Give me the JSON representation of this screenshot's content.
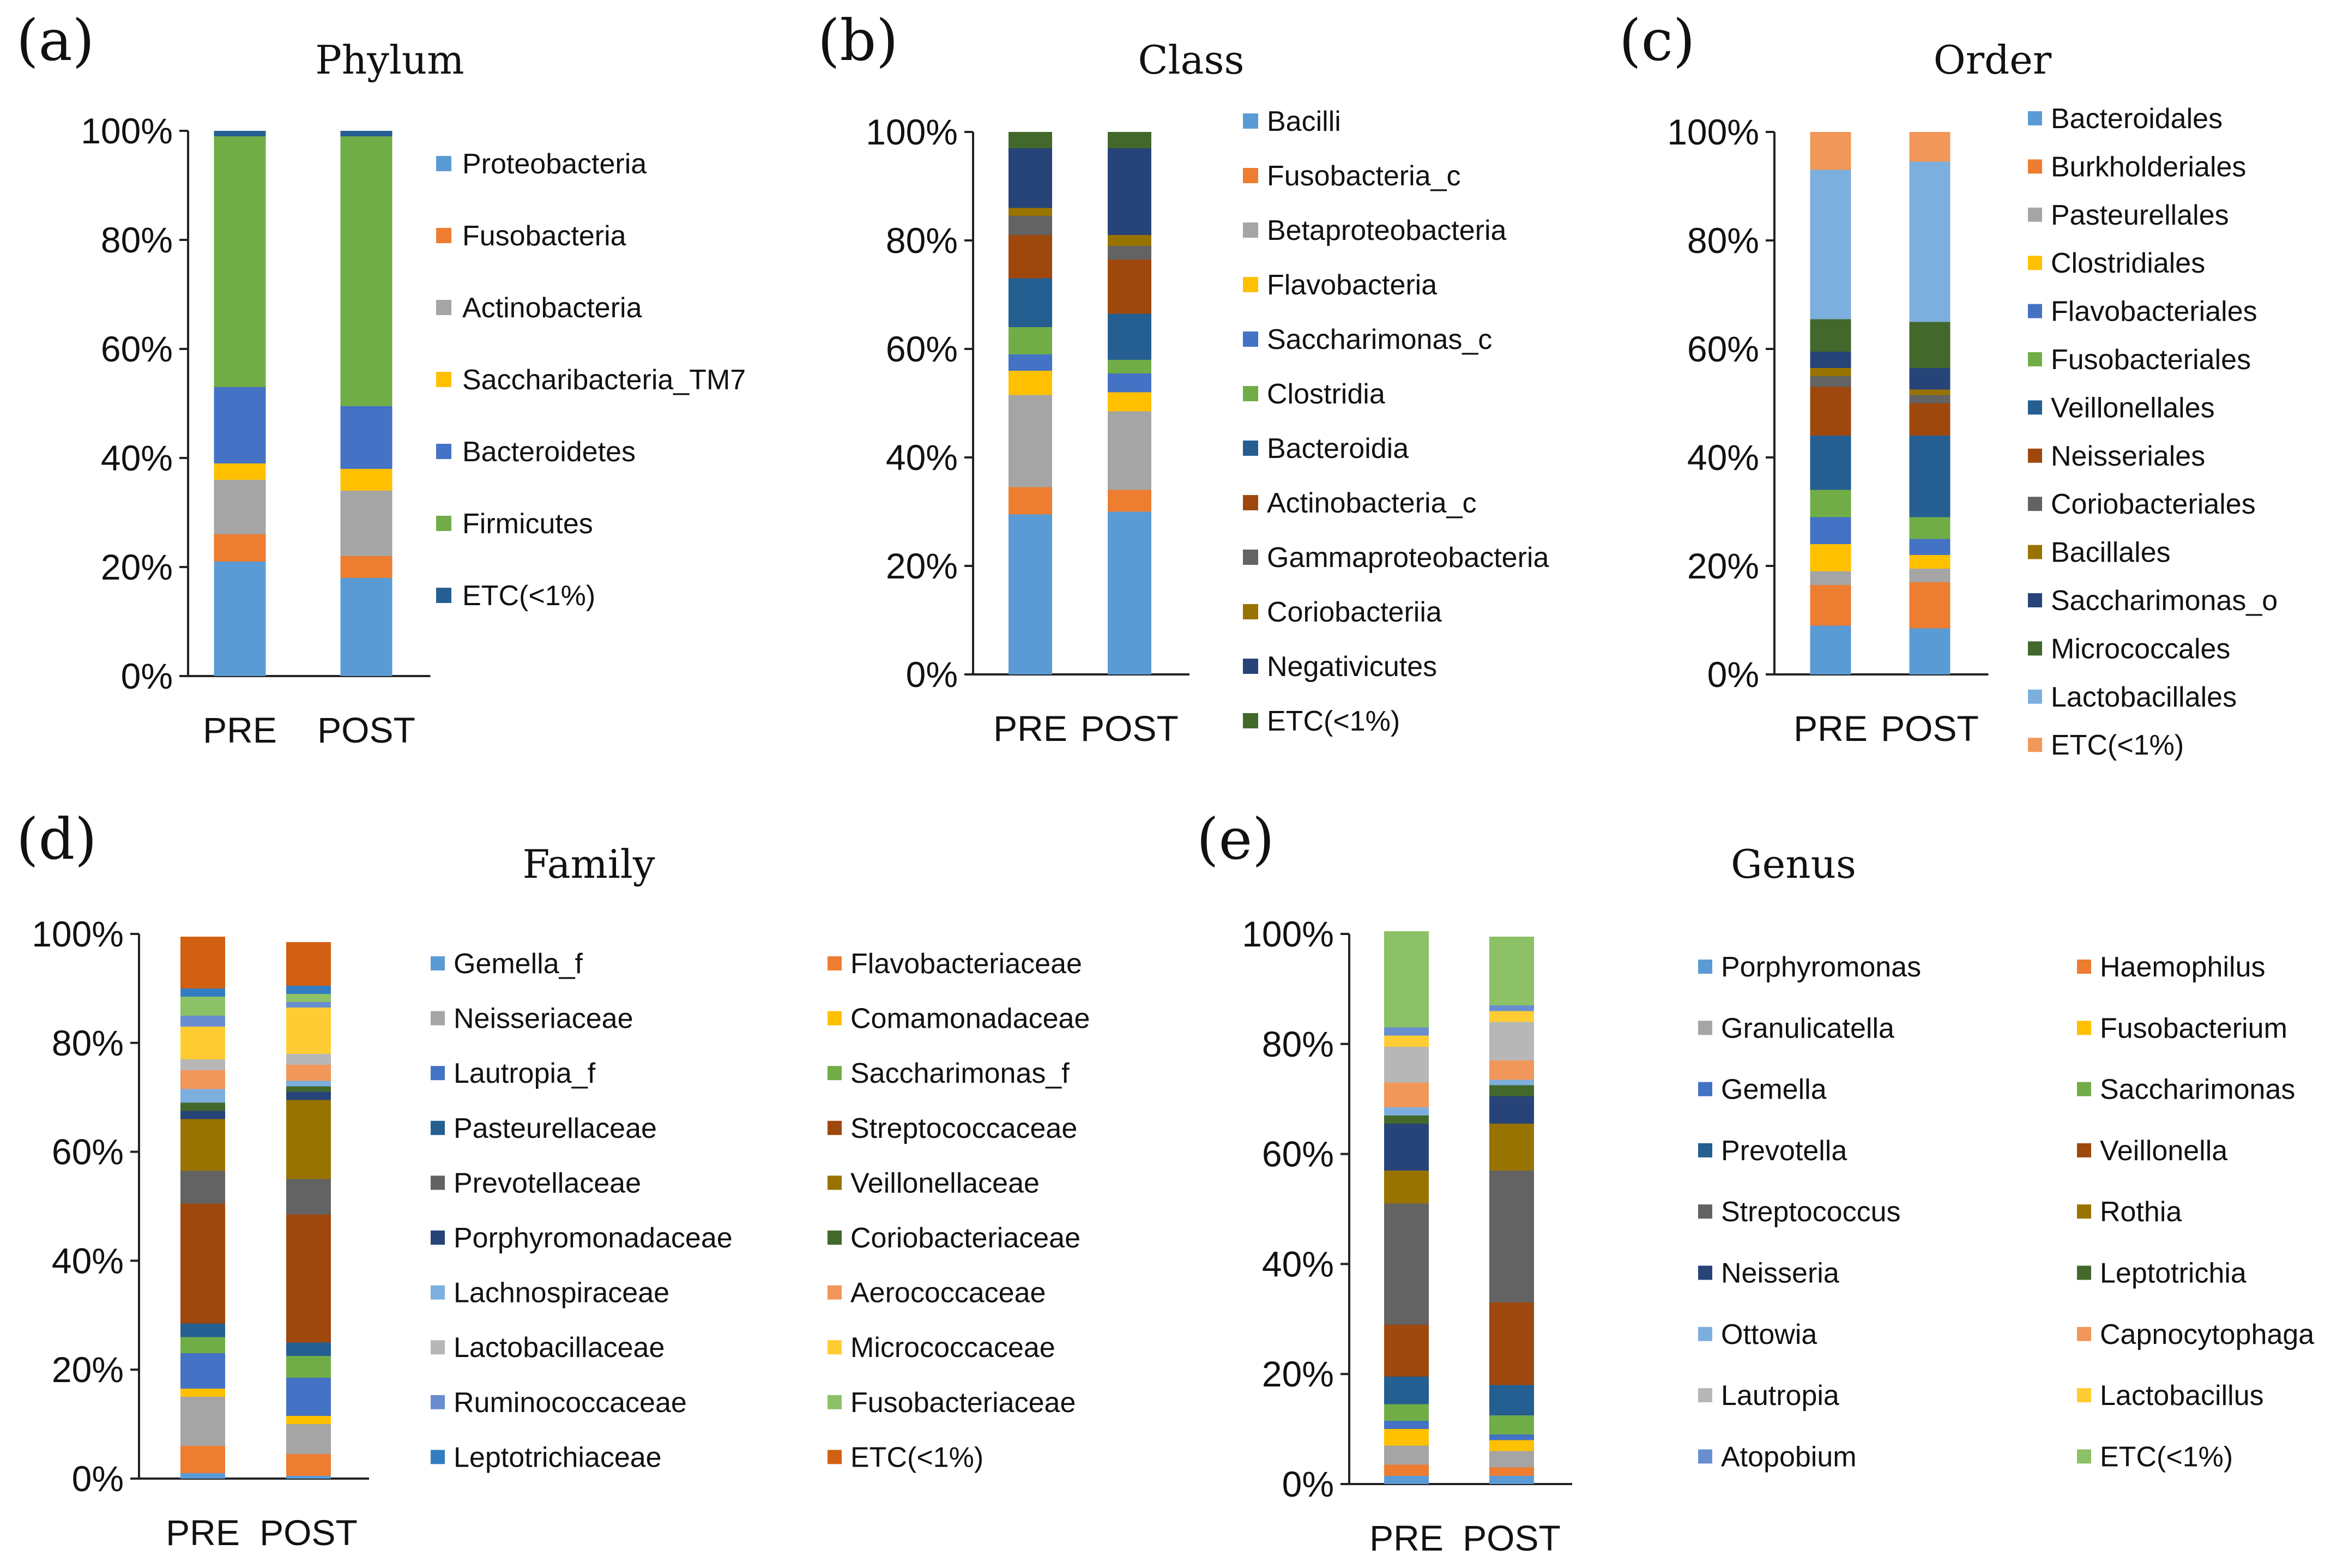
{
  "figure": {
    "panel_letters": [
      "(a)",
      "(b)",
      "(c)",
      "(d)",
      "(e)"
    ]
  },
  "chart_data": [
    {
      "type": "bar",
      "stacked": true,
      "title": "Phylum",
      "categories": [
        "PRE",
        "POST"
      ],
      "yticks": [
        "0%",
        "20%",
        "40%",
        "60%",
        "80%",
        "100%"
      ],
      "ylim": [
        0,
        100
      ],
      "series": [
        {
          "name": "Proteobacteria",
          "color": "#5B9BD5",
          "values": [
            21,
            18
          ]
        },
        {
          "name": "Fusobacteria",
          "color": "#ED7D31",
          "values": [
            5,
            4
          ]
        },
        {
          "name": "Actinobacteria",
          "color": "#A5A5A5",
          "values": [
            10,
            12
          ]
        },
        {
          "name": "Saccharibacteria_TM7",
          "color": "#FFC000",
          "values": [
            3,
            4
          ]
        },
        {
          "name": "Bacteroidetes",
          "color": "#4472C4",
          "values": [
            14,
            11.5
          ]
        },
        {
          "name": "Firmicutes",
          "color": "#70AD47",
          "values": [
            46,
            49.5
          ]
        },
        {
          "name": "ETC(<1%)",
          "color": "#255E91",
          "values": [
            1,
            1
          ]
        }
      ]
    },
    {
      "type": "bar",
      "stacked": true,
      "title": "Class",
      "categories": [
        "PRE",
        "POST"
      ],
      "yticks": [
        "0%",
        "20%",
        "40%",
        "60%",
        "80%",
        "100%"
      ],
      "ylim": [
        0,
        100
      ],
      "series": [
        {
          "name": "Bacilli",
          "color": "#5B9BD5",
          "values": [
            29.5,
            30
          ]
        },
        {
          "name": "Fusobacteria_c",
          "color": "#ED7D31",
          "values": [
            5,
            4
          ]
        },
        {
          "name": "Betaproteobacteria",
          "color": "#A5A5A5",
          "values": [
            17,
            14.5
          ]
        },
        {
          "name": "Flavobacteria",
          "color": "#FFC000",
          "values": [
            4.5,
            3.5
          ]
        },
        {
          "name": "Saccharimonas_c",
          "color": "#4472C4",
          "values": [
            3,
            3.5
          ]
        },
        {
          "name": "Clostridia",
          "color": "#70AD47",
          "values": [
            5,
            2.5
          ]
        },
        {
          "name": "Bacteroidia",
          "color": "#255E91",
          "values": [
            9,
            8.5
          ]
        },
        {
          "name": "Actinobacteria_c",
          "color": "#9E480E",
          "values": [
            8,
            10
          ]
        },
        {
          "name": "Gammaproteobacteria",
          "color": "#636363",
          "values": [
            3.5,
            2.5
          ]
        },
        {
          "name": "Coriobacteriia",
          "color": "#997300",
          "values": [
            1.5,
            2
          ]
        },
        {
          "name": "Negativicutes",
          "color": "#264478",
          "values": [
            11,
            16
          ]
        },
        {
          "name": "ETC(<1%)",
          "color": "#43682B",
          "values": [
            3,
            3
          ]
        }
      ]
    },
    {
      "type": "bar",
      "stacked": true,
      "title": "Order",
      "categories": [
        "PRE",
        "POST"
      ],
      "yticks": [
        "0%",
        "20%",
        "40%",
        "60%",
        "80%",
        "100%"
      ],
      "ylim": [
        0,
        100
      ],
      "series": [
        {
          "name": "Bacteroidales",
          "color": "#5B9BD5",
          "values": [
            9,
            8.5
          ]
        },
        {
          "name": "Burkholderiales",
          "color": "#ED7D31",
          "values": [
            7.5,
            8.5
          ]
        },
        {
          "name": "Pasteurellales",
          "color": "#A5A5A5",
          "values": [
            2.5,
            2.5
          ]
        },
        {
          "name": "Clostridiales",
          "color": "#FFC000",
          "values": [
            5,
            2.5
          ]
        },
        {
          "name": "Flavobacteriales",
          "color": "#4472C4",
          "values": [
            5,
            3
          ]
        },
        {
          "name": "Fusobacteriales",
          "color": "#70AD47",
          "values": [
            5,
            4
          ]
        },
        {
          "name": "Veillonellales",
          "color": "#255E91",
          "values": [
            10,
            15
          ]
        },
        {
          "name": "Neisseriales",
          "color": "#9E480E",
          "values": [
            9,
            6
          ]
        },
        {
          "name": "Coriobacteriales",
          "color": "#636363",
          "values": [
            2,
            1.5
          ]
        },
        {
          "name": "Bacillales",
          "color": "#997300",
          "values": [
            1.5,
            1
          ]
        },
        {
          "name": "Saccharimonas_o",
          "color": "#264478",
          "values": [
            3,
            4
          ]
        },
        {
          "name": "Micrococcales",
          "color": "#43682B",
          "values": [
            6,
            8.5
          ]
        },
        {
          "name": "Lactobacillales",
          "color": "#7CAFDD",
          "values": [
            27.5,
            29.5
          ]
        },
        {
          "name": "ETC(<1%)",
          "color": "#F1975A",
          "values": [
            7,
            5.5
          ]
        }
      ]
    },
    {
      "type": "bar",
      "stacked": true,
      "title": "Family",
      "categories": [
        "PRE",
        "POST"
      ],
      "yticks": [
        "0%",
        "20%",
        "40%",
        "60%",
        "80%",
        "100%"
      ],
      "ylim": [
        0,
        100
      ],
      "series": [
        {
          "name": "Gemella_f",
          "color": "#5B9BD5",
          "values": [
            1,
            0.5
          ]
        },
        {
          "name": "Flavobacteriaceae",
          "color": "#ED7D31",
          "values": [
            5,
            4
          ]
        },
        {
          "name": "Neisseriaceae",
          "color": "#A5A5A5",
          "values": [
            9,
            5.5
          ]
        },
        {
          "name": "Comamonadaceae",
          "color": "#FFC000",
          "values": [
            1.5,
            1.5
          ]
        },
        {
          "name": "Lautropia_f",
          "color": "#4472C4",
          "values": [
            6.5,
            7
          ]
        },
        {
          "name": "Saccharimonas_f",
          "color": "#70AD47",
          "values": [
            3,
            4
          ]
        },
        {
          "name": "Pasteurellaceae",
          "color": "#255E91",
          "values": [
            2.5,
            2.5
          ]
        },
        {
          "name": "Streptococcaceae",
          "color": "#9E480E",
          "values": [
            22,
            23.5
          ]
        },
        {
          "name": "Prevotellaceae",
          "color": "#636363",
          "values": [
            6,
            6.5
          ]
        },
        {
          "name": "Veillonellaceae",
          "color": "#997300",
          "values": [
            9.5,
            14.5
          ]
        },
        {
          "name": "Porphyromonadaceae",
          "color": "#264478",
          "values": [
            1.5,
            1.5
          ]
        },
        {
          "name": "Coriobacteriaceae",
          "color": "#43682B",
          "values": [
            1.5,
            1
          ]
        },
        {
          "name": "Lachnospiraceae",
          "color": "#7CAFDD",
          "values": [
            2.5,
            1
          ]
        },
        {
          "name": "Aerococcaceae",
          "color": "#F1975A",
          "values": [
            3.5,
            3
          ]
        },
        {
          "name": "Lactobacillaceae",
          "color": "#B7B7B7",
          "values": [
            2,
            2
          ]
        },
        {
          "name": "Micrococcaceae",
          "color": "#FFCD33",
          "values": [
            6,
            8.5
          ]
        },
        {
          "name": "Ruminococcaceae",
          "color": "#698ED0",
          "values": [
            2,
            1
          ]
        },
        {
          "name": "Fusobacteriaceae",
          "color": "#8CC168",
          "values": [
            3.5,
            1.5
          ]
        },
        {
          "name": "Leptotrichiaceae",
          "color": "#327DC2",
          "values": [
            1.5,
            1.5
          ]
        },
        {
          "name": "ETC(<1%)",
          "color": "#D26012",
          "values": [
            9.5,
            8
          ]
        }
      ]
    },
    {
      "type": "bar",
      "stacked": true,
      "title": "Genus",
      "categories": [
        "PRE",
        "POST"
      ],
      "yticks": [
        "0%",
        "20%",
        "40%",
        "60%",
        "80%",
        "100%"
      ],
      "ylim": [
        0,
        100
      ],
      "series": [
        {
          "name": "Porphyromonas",
          "color": "#5B9BD5",
          "values": [
            1.5,
            1.5
          ]
        },
        {
          "name": "Haemophilus",
          "color": "#ED7D31",
          "values": [
            2,
            1.5
          ]
        },
        {
          "name": "Granulicatella",
          "color": "#A5A5A5",
          "values": [
            3.5,
            3
          ]
        },
        {
          "name": "Fusobacterium",
          "color": "#FFC000",
          "values": [
            3,
            2
          ]
        },
        {
          "name": "Gemella",
          "color": "#4472C4",
          "values": [
            1.5,
            1
          ]
        },
        {
          "name": "Saccharimonas",
          "color": "#70AD47",
          "values": [
            3,
            3.5
          ]
        },
        {
          "name": "Prevotella",
          "color": "#255E91",
          "values": [
            5,
            5.5
          ]
        },
        {
          "name": "Veillonella",
          "color": "#9E480E",
          "values": [
            9.5,
            15
          ]
        },
        {
          "name": "Streptococcus",
          "color": "#636363",
          "values": [
            22,
            24
          ]
        },
        {
          "name": "Rothia",
          "color": "#997300",
          "values": [
            6,
            8.5
          ]
        },
        {
          "name": "Neisseria",
          "color": "#264478",
          "values": [
            8.5,
            5
          ]
        },
        {
          "name": "Leptotrichia",
          "color": "#43682B",
          "values": [
            1.5,
            2
          ]
        },
        {
          "name": "Ottowia",
          "color": "#7CAFDD",
          "values": [
            1.5,
            1
          ]
        },
        {
          "name": "Capnocytophaga",
          "color": "#F1975A",
          "values": [
            4.5,
            3.5
          ]
        },
        {
          "name": "Lautropia",
          "color": "#B7B7B7",
          "values": [
            6.5,
            7
          ]
        },
        {
          "name": "Lactobacillus",
          "color": "#FFCD33",
          "values": [
            2,
            2
          ]
        },
        {
          "name": "Atopobium",
          "color": "#698ED0",
          "values": [
            1.5,
            1
          ]
        },
        {
          "name": "ETC(<1%)",
          "color": "#8CC168",
          "values": [
            17.5,
            12.5
          ]
        }
      ]
    }
  ]
}
